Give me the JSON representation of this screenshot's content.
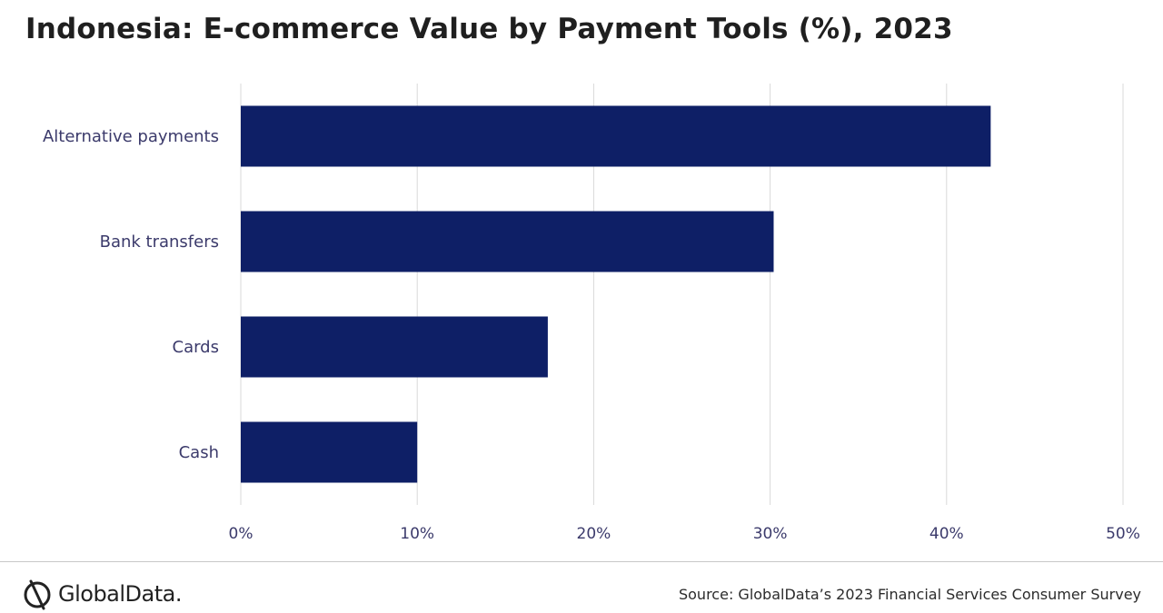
{
  "title": "Indonesia: E-commerce Value by Payment Tools (%), 2023",
  "source": "Source: GlobalData’s 2023 Financial Services Consumer Survey",
  "logo": {
    "text": "GlobalData.",
    "icon": "globaldata-logo-icon"
  },
  "colors": {
    "bar": "#0e1f66",
    "grid": "#d9d9d9",
    "category_label": "#3b3a6b",
    "tick_label": "#3b3a6b"
  },
  "chart_data": {
    "type": "bar",
    "orientation": "horizontal",
    "categories": [
      "Alternative payments",
      "Bank transfers",
      "Cards",
      "Cash"
    ],
    "values": [
      42.5,
      30.2,
      17.4,
      10.0
    ],
    "xlim": [
      0,
      50
    ],
    "xticks": [
      0,
      10,
      20,
      30,
      40,
      50
    ],
    "xtick_labels": [
      "0%",
      "10%",
      "20%",
      "30%",
      "40%",
      "50%"
    ],
    "grid": "vertical",
    "legend": "none"
  }
}
